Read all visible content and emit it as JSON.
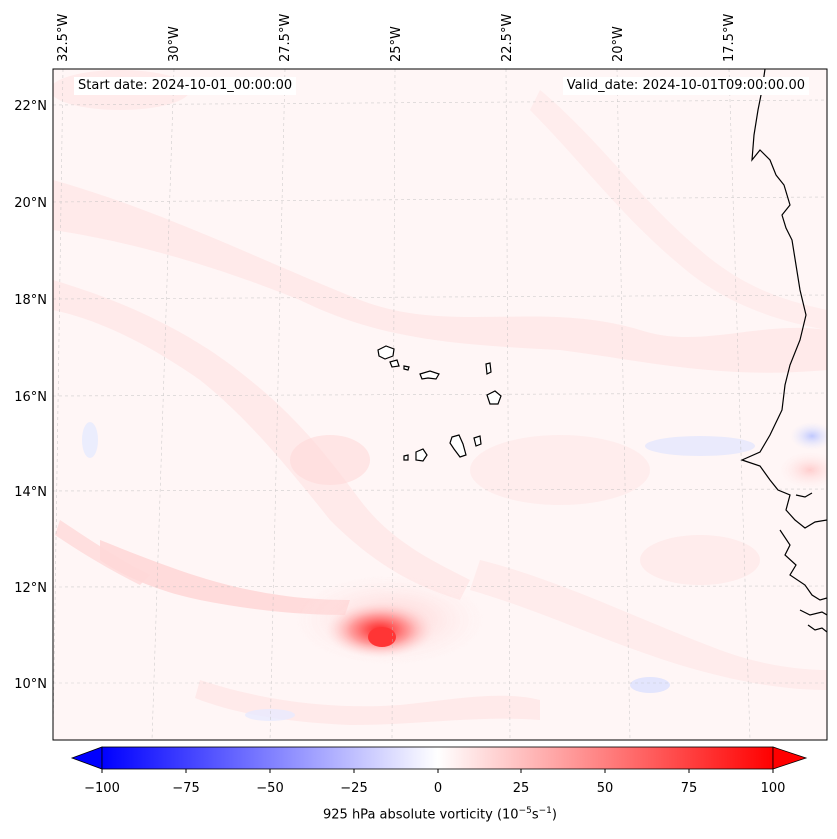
{
  "map": {
    "lon_labels": [
      "32.5°W",
      "30°W",
      "27.5°W",
      "25°W",
      "22.5°W",
      "20°W",
      "17.5°W"
    ],
    "lat_labels": [
      "22°N",
      "20°N",
      "18°N",
      "16°N",
      "14°N",
      "12°N",
      "10°N"
    ],
    "start_date": "Start date: 2024-10-01_00:00:00",
    "valid_date": "Valid_date: 2024-10-01T09:00:00.00"
  },
  "colorbar": {
    "ticks": [
      "−100",
      "−75",
      "−50",
      "−25",
      "0",
      "25",
      "50",
      "75",
      "100"
    ],
    "label_prefix": "925 hPa absolute vorticity (10",
    "label_exp1": "−5",
    "label_mid": "s",
    "label_exp2": "−1",
    "label_suffix": ")",
    "min_color": "#0000ff",
    "mid_color": "#ffffff",
    "max_color": "#ff0000"
  }
}
